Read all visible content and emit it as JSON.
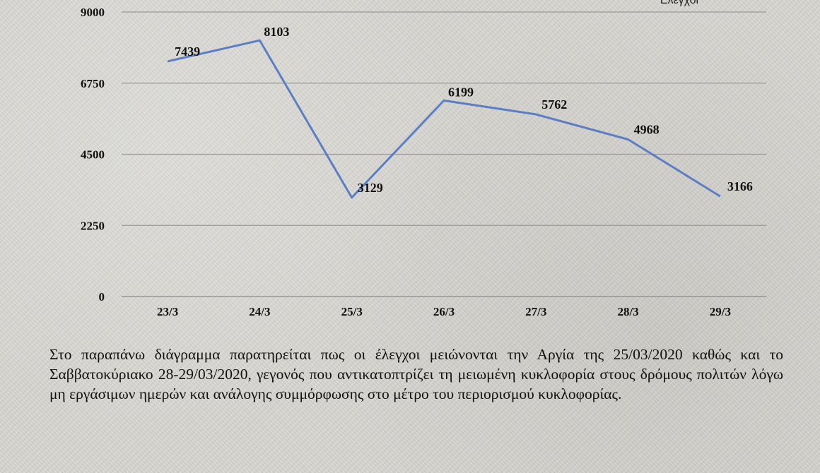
{
  "chart_data": {
    "type": "line",
    "categories": [
      "23/3",
      "24/3",
      "25/3",
      "26/3",
      "27/3",
      "28/3",
      "29/3"
    ],
    "series": [
      {
        "name": "Έλεγχοι",
        "values": [
          7439,
          8103,
          3129,
          6199,
          5762,
          4968,
          3166
        ],
        "color": "#5b7fc2"
      }
    ],
    "ylim": [
      0,
      9000
    ],
    "yticks": [
      "0",
      "2250",
      "4500",
      "6750",
      "9000"
    ],
    "ytick_values": [
      0,
      2250,
      4500,
      6750,
      9000
    ],
    "data_labels": [
      "7439",
      "8103",
      "3129",
      "6199",
      "5762",
      "4968",
      "3166"
    ],
    "grid": true,
    "legend_position": "top-right",
    "title": "",
    "xlabel": "",
    "ylabel": ""
  },
  "caption": "Στο παραπάνω διάγραμμα παρατηρείται πως οι έλεγχοι μειώνονται την Αργία της 25/03/2020 καθώς και το Σαββατοκύριακο 28-29/03/2020, γεγονός που αντικατοπτρίζει τη μειωμένη κυκλοφορία στους δρόμους πολιτών λόγω μη εργάσιμων ημερών και ανάλογης συμμόρφωσης στο μέτρο του περιορισμού κυκλοφορίας."
}
